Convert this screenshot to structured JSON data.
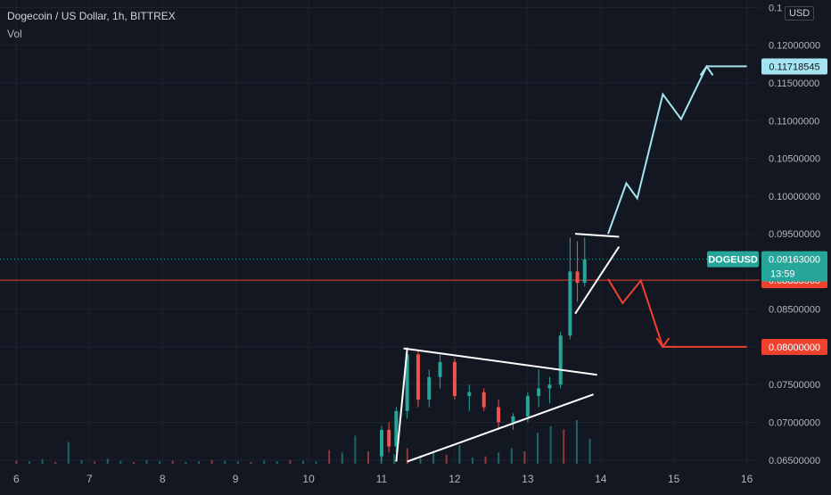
{
  "legend": {
    "symbol_line": "Dogecoin / US Dollar, 1h, BITTREX",
    "volume_label": "Vol"
  },
  "currency_label": "USD",
  "price_scale": {
    "labels": [
      "0.1",
      "0.12000000",
      "0.11500000",
      "0.11000000",
      "0.10500000",
      "0.10000000",
      "0.09500000",
      "0.08500000",
      "0.08000000",
      "0.07500000",
      "0.07000000",
      "0.06500000"
    ],
    "values": [
      0.125,
      0.12,
      0.115,
      0.11,
      0.105,
      0.1,
      0.095,
      0.085,
      0.08,
      0.075,
      0.07,
      0.065
    ]
  },
  "time_axis": {
    "labels": [
      "6",
      "7",
      "8",
      "9",
      "10",
      "11",
      "12",
      "13",
      "14",
      "15",
      "16"
    ]
  },
  "colors": {
    "background": "#131722",
    "up": "#26a69a",
    "down": "#ef5350",
    "projection_up": "#a4e4f0",
    "projection_down": "#f0412e",
    "pattern_lines": "#ffffff",
    "grid": "#1e222d",
    "text": "#b2b5be"
  },
  "chart_data": {
    "type": "candlestick",
    "symbol": "DOGEUSD",
    "interval": "1h",
    "exchange": "BITTREX",
    "ylim": [
      0.0645,
      0.126
    ],
    "xlim": [
      5.8,
      16.2
    ],
    "current_price": {
      "label": "DOGEUSD",
      "value_text": "0.09163000",
      "value": 0.09163,
      "countdown": "13:59"
    },
    "markers": [
      {
        "value_text": "0.11718545",
        "value": 0.11718545,
        "color": "#a4e4f0",
        "role": "target-up"
      },
      {
        "value_text": "0.08885565",
        "value": 0.08885565,
        "color": "#f0412e",
        "role": "horizontal-level"
      },
      {
        "value_text": "0.08000000",
        "value": 0.08,
        "color": "#f0412e",
        "role": "target-down"
      }
    ],
    "horizontal_levels": [
      {
        "value": 0.08885565,
        "color": "#f0412e"
      },
      {
        "value": 0.09163,
        "color": "#26a69a",
        "style": "dotted"
      }
    ],
    "candles": [
      {
        "t": 11.0,
        "o": 0.0655,
        "h": 0.0695,
        "l": 0.0648,
        "c": 0.069
      },
      {
        "t": 11.1,
        "o": 0.069,
        "h": 0.07,
        "l": 0.066,
        "c": 0.0668
      },
      {
        "t": 11.2,
        "o": 0.0668,
        "h": 0.072,
        "l": 0.066,
        "c": 0.0715
      },
      {
        "t": 11.35,
        "o": 0.0715,
        "h": 0.08,
        "l": 0.0705,
        "c": 0.079
      },
      {
        "t": 11.5,
        "o": 0.079,
        "h": 0.0795,
        "l": 0.072,
        "c": 0.073
      },
      {
        "t": 11.65,
        "o": 0.073,
        "h": 0.077,
        "l": 0.072,
        "c": 0.076
      },
      {
        "t": 11.8,
        "o": 0.076,
        "h": 0.079,
        "l": 0.0745,
        "c": 0.078
      },
      {
        "t": 12.0,
        "o": 0.078,
        "h": 0.0785,
        "l": 0.073,
        "c": 0.0735
      },
      {
        "t": 12.2,
        "o": 0.0735,
        "h": 0.075,
        "l": 0.0715,
        "c": 0.074
      },
      {
        "t": 12.4,
        "o": 0.074,
        "h": 0.0745,
        "l": 0.0715,
        "c": 0.072
      },
      {
        "t": 12.6,
        "o": 0.072,
        "h": 0.073,
        "l": 0.069,
        "c": 0.07
      },
      {
        "t": 12.8,
        "o": 0.07,
        "h": 0.0712,
        "l": 0.069,
        "c": 0.0708
      },
      {
        "t": 13.0,
        "o": 0.0708,
        "h": 0.074,
        "l": 0.07,
        "c": 0.0735
      },
      {
        "t": 13.15,
        "o": 0.0735,
        "h": 0.077,
        "l": 0.072,
        "c": 0.0745
      },
      {
        "t": 13.3,
        "o": 0.0745,
        "h": 0.076,
        "l": 0.0725,
        "c": 0.075
      },
      {
        "t": 13.45,
        "o": 0.075,
        "h": 0.082,
        "l": 0.0745,
        "c": 0.0815
      },
      {
        "t": 13.58,
        "o": 0.0815,
        "h": 0.0945,
        "l": 0.081,
        "c": 0.09
      },
      {
        "t": 13.68,
        "o": 0.09,
        "h": 0.094,
        "l": 0.086,
        "c": 0.0885
      },
      {
        "t": 13.78,
        "o": 0.0885,
        "h": 0.0945,
        "l": 0.088,
        "c": 0.0916
      }
    ],
    "volume_heights": [
      0.05,
      0.04,
      0.07,
      0.03,
      0.35,
      0.06,
      0.04,
      0.08,
      0.05,
      0.03,
      0.06,
      0.04,
      0.05,
      0.03,
      0.04,
      0.06,
      0.05,
      0.04,
      0.03,
      0.05,
      0.04,
      0.06,
      0.05,
      0.04,
      0.22,
      0.18,
      0.45,
      0.2,
      0.3,
      0.15,
      0.25,
      0.12,
      0.2,
      0.15,
      0.3,
      0.1,
      0.12,
      0.18,
      0.25,
      0.2,
      0.5,
      0.6,
      0.55,
      0.7,
      0.4
    ],
    "annotations": [
      {
        "kind": "triangle-upper",
        "points": [
          [
            11.3,
            0.0798
          ],
          [
            13.95,
            0.0763
          ]
        ],
        "color": "#ffffff"
      },
      {
        "kind": "triangle-lower",
        "points": [
          [
            11.35,
            0.0648
          ],
          [
            13.9,
            0.0737
          ]
        ],
        "color": "#ffffff"
      },
      {
        "kind": "triangle-left",
        "points": [
          [
            11.2,
            0.0648
          ],
          [
            11.35,
            0.0798
          ]
        ],
        "color": "#ffffff"
      },
      {
        "kind": "flag-top",
        "points": [
          [
            13.65,
            0.095
          ],
          [
            14.25,
            0.0946
          ]
        ],
        "color": "#ffffff"
      },
      {
        "kind": "flag-bottom",
        "points": [
          [
            13.65,
            0.0844
          ],
          [
            14.25,
            0.0933
          ]
        ],
        "color": "#ffffff"
      },
      {
        "kind": "projection-up",
        "points": [
          [
            14.1,
            0.095
          ],
          [
            14.35,
            0.1017
          ],
          [
            14.5,
            0.0997
          ],
          [
            14.85,
            0.1135
          ],
          [
            15.1,
            0.1102
          ],
          [
            15.45,
            0.1172
          ],
          [
            16.0,
            0.1172
          ]
        ],
        "color": "#a4e4f0"
      },
      {
        "kind": "projection-down",
        "points": [
          [
            14.1,
            0.089
          ],
          [
            14.3,
            0.0858
          ],
          [
            14.55,
            0.0888
          ],
          [
            14.85,
            0.08
          ],
          [
            16.0,
            0.08
          ]
        ],
        "color": "#f0412e"
      }
    ]
  }
}
